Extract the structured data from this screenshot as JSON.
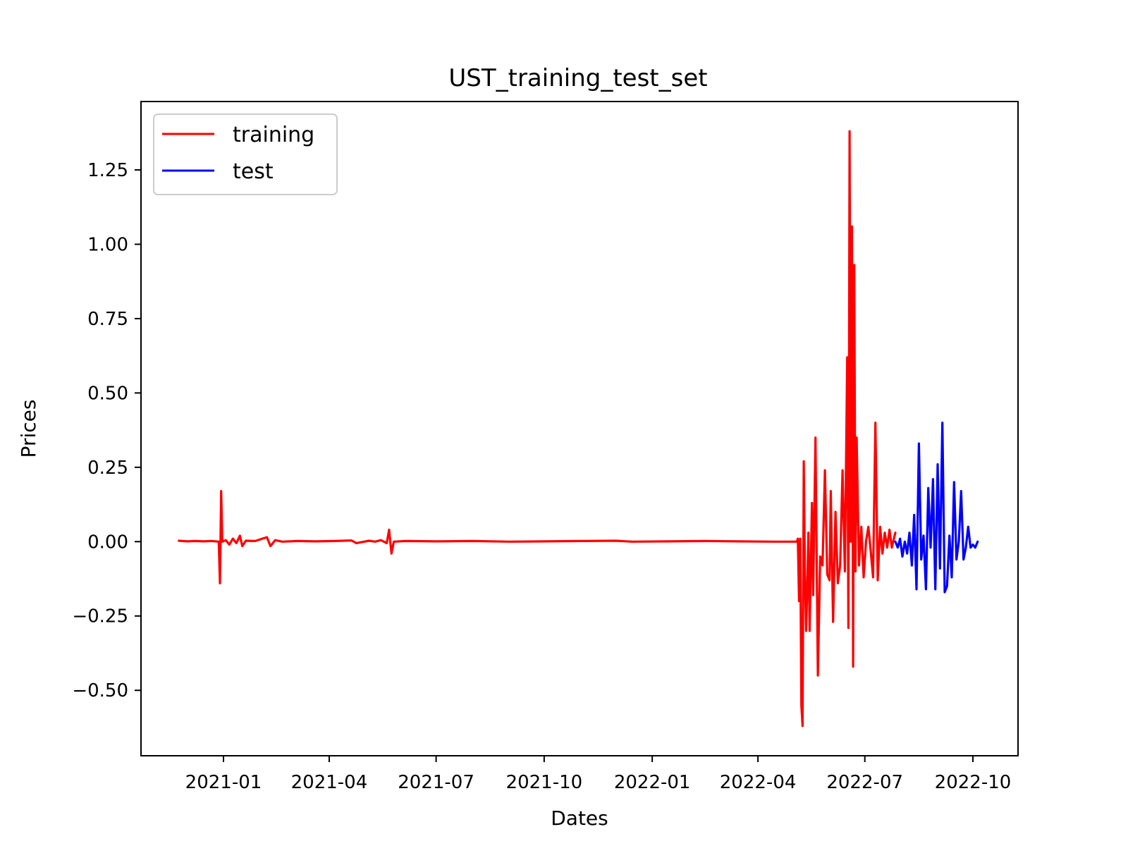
{
  "chart_data": {
    "type": "line",
    "title": "UST_training_test_set",
    "xlabel": "Dates",
    "ylabel": "Prices",
    "x_ticks": [
      "2021-01",
      "2021-04",
      "2021-07",
      "2021-10",
      "2022-01",
      "2022-04",
      "2022-07",
      "2022-10"
    ],
    "y_ticks": [
      "−0.50",
      "−0.25",
      "0.00",
      "0.25",
      "0.50",
      "0.75",
      "1.00",
      "1.25"
    ],
    "ylim": [
      -0.72,
      1.48
    ],
    "legend_position": "top-left",
    "grid": false,
    "series": [
      {
        "name": "training",
        "color": "#ff0000",
        "points": [
          [
            "2020-11-24",
            0.003
          ],
          [
            "2020-12-01",
            0.001
          ],
          [
            "2020-12-08",
            0.002
          ],
          [
            "2020-12-15",
            0.001
          ],
          [
            "2020-12-22",
            0.002
          ],
          [
            "2020-12-28",
            0.0
          ],
          [
            "2020-12-29",
            -0.14
          ],
          [
            "2020-12-30",
            0.17
          ],
          [
            "2020-12-31",
            0.0
          ],
          [
            "2021-01-03",
            0.005
          ],
          [
            "2021-01-06",
            -0.01
          ],
          [
            "2021-01-09",
            0.01
          ],
          [
            "2021-01-12",
            -0.005
          ],
          [
            "2021-01-15",
            0.02
          ],
          [
            "2021-01-17",
            -0.015
          ],
          [
            "2021-01-20",
            0.003
          ],
          [
            "2021-01-28",
            0.002
          ],
          [
            "2021-02-03",
            0.01
          ],
          [
            "2021-02-07",
            0.015
          ],
          [
            "2021-02-10",
            -0.015
          ],
          [
            "2021-02-14",
            0.005
          ],
          [
            "2021-02-20",
            0.0
          ],
          [
            "2021-03-05",
            0.002
          ],
          [
            "2021-03-20",
            0.001
          ],
          [
            "2021-04-05",
            0.002
          ],
          [
            "2021-04-20",
            0.004
          ],
          [
            "2021-04-24",
            -0.005
          ],
          [
            "2021-05-05",
            0.003
          ],
          [
            "2021-05-10",
            0.0
          ],
          [
            "2021-05-15",
            0.005
          ],
          [
            "2021-05-20",
            -0.005
          ],
          [
            "2021-05-22",
            0.04
          ],
          [
            "2021-05-24",
            -0.04
          ],
          [
            "2021-05-26",
            0.0
          ],
          [
            "2021-06-05",
            0.002
          ],
          [
            "2021-07-01",
            0.001
          ],
          [
            "2021-08-01",
            0.002
          ],
          [
            "2021-09-01",
            0.0
          ],
          [
            "2021-10-01",
            0.001
          ],
          [
            "2021-11-01",
            0.002
          ],
          [
            "2021-12-01",
            0.003
          ],
          [
            "2021-12-15",
            0.0
          ],
          [
            "2022-01-15",
            0.001
          ],
          [
            "2022-02-15",
            0.002
          ],
          [
            "2022-03-15",
            0.001
          ],
          [
            "2022-04-15",
            0.0
          ],
          [
            "2022-05-04",
            0.0
          ],
          [
            "2022-05-05",
            0.01
          ],
          [
            "2022-05-06",
            -0.2
          ],
          [
            "2022-05-07",
            0.01
          ],
          [
            "2022-05-08",
            -0.55
          ],
          [
            "2022-05-09",
            -0.62
          ],
          [
            "2022-05-10",
            0.27
          ],
          [
            "2022-05-11",
            -0.1
          ],
          [
            "2022-05-12",
            -0.3
          ],
          [
            "2022-05-13",
            -0.15
          ],
          [
            "2022-05-14",
            0.03
          ],
          [
            "2022-05-15",
            -0.3
          ],
          [
            "2022-05-17",
            0.13
          ],
          [
            "2022-05-18",
            -0.18
          ],
          [
            "2022-05-20",
            0.35
          ],
          [
            "2022-05-22",
            -0.45
          ],
          [
            "2022-05-24",
            -0.05
          ],
          [
            "2022-05-26",
            -0.08
          ],
          [
            "2022-05-28",
            0.24
          ],
          [
            "2022-05-30",
            -0.11
          ],
          [
            "2022-06-01",
            -0.13
          ],
          [
            "2022-06-02",
            0.17
          ],
          [
            "2022-06-04",
            -0.27
          ],
          [
            "2022-06-06",
            0.1
          ],
          [
            "2022-06-08",
            -0.14
          ],
          [
            "2022-06-10",
            -0.08
          ],
          [
            "2022-06-12",
            0.24
          ],
          [
            "2022-06-14",
            -0.1
          ],
          [
            "2022-06-16",
            0.62
          ],
          [
            "2022-06-17",
            -0.29
          ],
          [
            "2022-06-18",
            1.38
          ],
          [
            "2022-06-19",
            0.0
          ],
          [
            "2022-06-20",
            1.06
          ],
          [
            "2022-06-21",
            -0.42
          ],
          [
            "2022-06-22",
            0.93
          ],
          [
            "2022-06-23",
            -0.1
          ],
          [
            "2022-06-24",
            0.35
          ],
          [
            "2022-06-26",
            -0.08
          ],
          [
            "2022-06-28",
            0.05
          ],
          [
            "2022-06-30",
            -0.12
          ],
          [
            "2022-07-02",
            0.0
          ],
          [
            "2022-07-04",
            0.05
          ],
          [
            "2022-07-06",
            -0.03
          ],
          [
            "2022-07-08",
            -0.12
          ],
          [
            "2022-07-10",
            0.4
          ],
          [
            "2022-07-12",
            -0.13
          ],
          [
            "2022-07-14",
            0.05
          ],
          [
            "2022-07-16",
            -0.04
          ],
          [
            "2022-07-18",
            0.03
          ],
          [
            "2022-07-20",
            -0.02
          ],
          [
            "2022-07-22",
            0.04
          ],
          [
            "2022-07-24",
            -0.02
          ],
          [
            "2022-07-27",
            0.03
          ]
        ]
      },
      {
        "name": "test",
        "color": "#0000ff",
        "points": [
          [
            "2022-07-27",
            0.0
          ],
          [
            "2022-07-29",
            -0.02
          ],
          [
            "2022-07-31",
            0.01
          ],
          [
            "2022-08-02",
            -0.05
          ],
          [
            "2022-08-04",
            0.0
          ],
          [
            "2022-08-06",
            -0.04
          ],
          [
            "2022-08-08",
            0.03
          ],
          [
            "2022-08-10",
            -0.08
          ],
          [
            "2022-08-12",
            0.09
          ],
          [
            "2022-08-14",
            -0.16
          ],
          [
            "2022-08-16",
            0.33
          ],
          [
            "2022-08-18",
            -0.06
          ],
          [
            "2022-08-20",
            0.02
          ],
          [
            "2022-08-22",
            -0.16
          ],
          [
            "2022-08-24",
            0.18
          ],
          [
            "2022-08-26",
            -0.02
          ],
          [
            "2022-08-28",
            0.21
          ],
          [
            "2022-08-30",
            -0.16
          ],
          [
            "2022-09-01",
            0.26
          ],
          [
            "2022-09-03",
            -0.09
          ],
          [
            "2022-09-05",
            0.4
          ],
          [
            "2022-09-07",
            -0.17
          ],
          [
            "2022-09-09",
            -0.15
          ],
          [
            "2022-09-11",
            0.02
          ],
          [
            "2022-09-13",
            -0.12
          ],
          [
            "2022-09-15",
            0.2
          ],
          [
            "2022-09-17",
            -0.06
          ],
          [
            "2022-09-19",
            0.0
          ],
          [
            "2022-09-21",
            0.17
          ],
          [
            "2022-09-23",
            -0.06
          ],
          [
            "2022-09-25",
            -0.02
          ],
          [
            "2022-09-27",
            0.05
          ],
          [
            "2022-09-29",
            -0.02
          ],
          [
            "2022-10-01",
            -0.01
          ],
          [
            "2022-10-03",
            -0.02
          ],
          [
            "2022-10-05",
            0.0
          ]
        ]
      }
    ]
  }
}
